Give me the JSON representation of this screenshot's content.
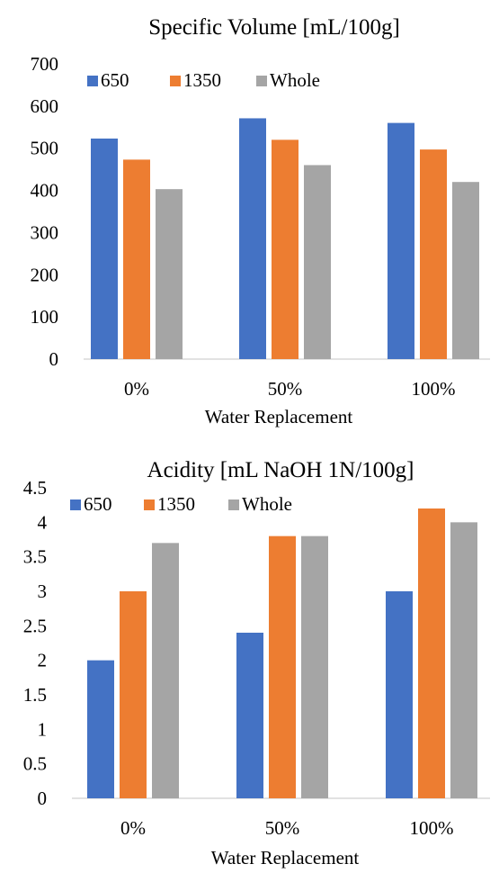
{
  "chart_data": [
    {
      "type": "bar",
      "title": "Specific Volume [mL/100g]",
      "xlabel": "Water Replacement",
      "ylabel": "",
      "categories": [
        "0%",
        "50%",
        "100%"
      ],
      "series": [
        {
          "name": "650",
          "values": [
            523,
            571,
            560
          ],
          "color": "#4472C4"
        },
        {
          "name": "1350",
          "values": [
            473,
            520,
            497
          ],
          "color": "#ED7D31"
        },
        {
          "name": "Whole",
          "values": [
            403,
            460,
            420
          ],
          "color": "#A5A5A5"
        }
      ],
      "ylim": [
        0,
        700
      ],
      "yticks": [
        "0",
        "100",
        "200",
        "300",
        "400",
        "500",
        "600",
        "700"
      ],
      "grid": false,
      "legend": "top-left"
    },
    {
      "type": "bar",
      "title": "Acidity [mL NaOH 1N/100g]",
      "xlabel": "Water Replacement",
      "ylabel": "",
      "categories": [
        "0%",
        "50%",
        "100%"
      ],
      "series": [
        {
          "name": "650",
          "values": [
            2.0,
            2.4,
            3.0
          ],
          "color": "#4472C4"
        },
        {
          "name": "1350",
          "values": [
            3.0,
            3.8,
            4.2
          ],
          "color": "#ED7D31"
        },
        {
          "name": "Whole",
          "values": [
            3.7,
            3.8,
            4.0
          ],
          "color": "#A5A5A5"
        }
      ],
      "ylim": [
        0,
        4.5
      ],
      "yticks": [
        "0",
        "0.5",
        "1",
        "1.5",
        "2",
        "2.5",
        "3",
        "3.5",
        "4",
        "4.5"
      ],
      "grid": false,
      "legend": "top-left"
    }
  ]
}
